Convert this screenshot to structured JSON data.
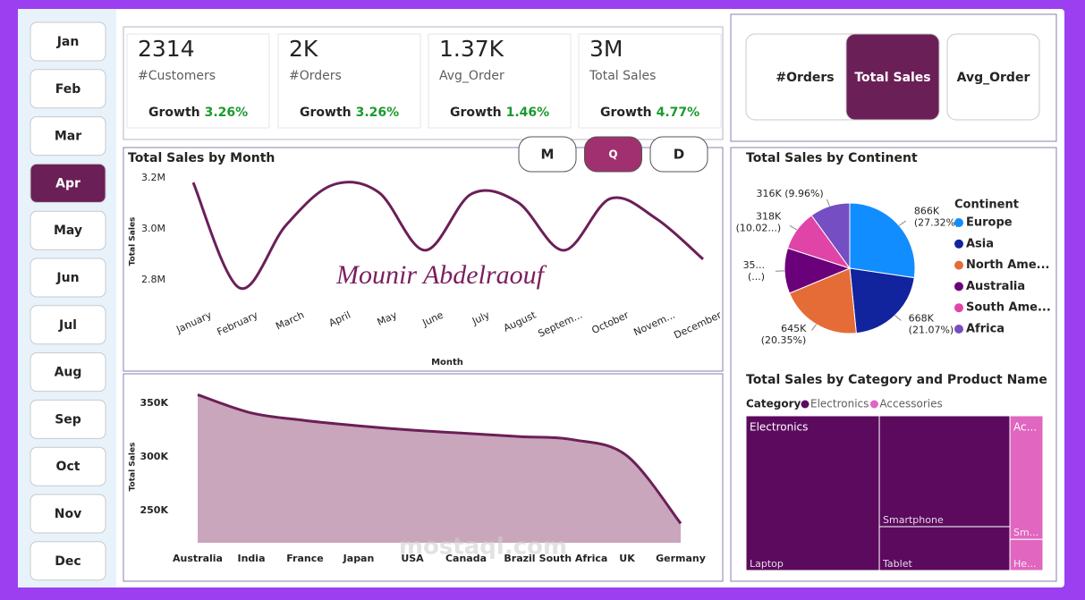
{
  "sidebar": {
    "months": [
      "Jan",
      "Feb",
      "Mar",
      "Apr",
      "May",
      "Jun",
      "Jul",
      "Aug",
      "Sep",
      "Oct",
      "Nov",
      "Dec"
    ],
    "selected": "Apr"
  },
  "kpis": [
    {
      "value": "2314",
      "label": "#Customers",
      "growth_label": "Growth",
      "growth": "3.26%",
      "icon_color": "#c9eed9"
    },
    {
      "value": "2K",
      "label": "#Orders",
      "growth_label": "Growth",
      "growth": "3.26%",
      "icon_color": "#fde9b5"
    },
    {
      "value": "1.37K",
      "label": "Avg_Order",
      "growth_label": "Growth",
      "growth": "1.46%",
      "icon_color": "#ffffff"
    },
    {
      "value": "3M",
      "label": "Total Sales",
      "growth_label": "Growth",
      "growth": "4.77%",
      "icon_color": "#d5dcfb"
    }
  ],
  "metric_toggle": {
    "options": [
      "#Orders",
      "Total Sales",
      "Avg_Order"
    ],
    "selected": "Total Sales"
  },
  "period_toggle": {
    "options": [
      "M",
      "Q",
      "D"
    ],
    "selected": "Q"
  },
  "signature": "Mounir Abdelraouf",
  "watermark": "mostaql.com",
  "chart_data": [
    {
      "type": "line",
      "title": "Total Sales by Month",
      "x_label": "Month",
      "y_label": "Total Sales",
      "categories": [
        "January",
        "February",
        "March",
        "April",
        "May",
        "June",
        "July",
        "August",
        "Septem...",
        "October",
        "Novem...",
        "December"
      ],
      "values": [
        3182000,
        2768000,
        3014000,
        3172000,
        3144000,
        2916000,
        3137000,
        3105000,
        2916000,
        3119000,
        3039000,
        2881000
      ],
      "color": "#6b1f57",
      "ylim": [
        2740000,
        3230000
      ],
      "yticks": [
        {
          "value": 2800000,
          "label": "2.8M"
        },
        {
          "value": 3000000,
          "label": "3.0M"
        },
        {
          "value": 3200000,
          "label": "3.2M"
        }
      ],
      "grid": false
    },
    {
      "type": "area",
      "y_label": "Total Sales",
      "categories": [
        "Australia",
        "India",
        "France",
        "Japan",
        "USA",
        "Canada",
        "Brazil",
        "South Africa",
        "UK",
        "Germany"
      ],
      "values": [
        358000,
        341000,
        334000,
        329000,
        325000,
        322000,
        319000,
        316000,
        301000,
        238000
      ],
      "color": "#6b1f57",
      "fill": "#c9a6bb",
      "ylim": [
        220000,
        365000
      ],
      "yticks": [
        {
          "value": 250000,
          "label": "250K"
        },
        {
          "value": 300000,
          "label": "300K"
        },
        {
          "value": 350000,
          "label": "350K"
        }
      ],
      "grid": false
    },
    {
      "type": "pie",
      "title": "Total Sales by Continent",
      "legend_title": "Continent",
      "categories": [
        "Europe",
        "Asia",
        "North Ame...",
        "Australia",
        "South Ame...",
        "Africa"
      ],
      "values": [
        866000,
        668000,
        645000,
        357000,
        318000,
        316000
      ],
      "value_labels": [
        [
          "866K",
          "(27.32%)"
        ],
        [
          "668K",
          "(21.07%)"
        ],
        [
          "645K",
          "(20.35%)"
        ],
        [
          "35...",
          "(...)"
        ],
        [
          "318K",
          "(10.02...)"
        ],
        [
          "316K (9.96%)"
        ]
      ],
      "colors": [
        "#118dff",
        "#12239e",
        "#e66c37",
        "#6b007b",
        "#e044a7",
        "#744ec2"
      ]
    },
    {
      "type": "treemap",
      "title": "Total Sales by Category and Product Name",
      "legend_title": "Category",
      "groups": [
        {
          "name": "Electronics",
          "cell_label": "Electronics",
          "color": "#5b0a5e",
          "children": [
            {
              "name": "Laptop",
              "value": 1423000
            },
            {
              "name": "Smartphone",
              "value": 999000
            },
            {
              "name": "Tablet",
              "value": 395000
            }
          ]
        },
        {
          "name": "Accessories",
          "cell_label": "Ac...",
          "color": "#e066c0",
          "children": [
            {
              "name": "Sm...",
              "value": 282000
            },
            {
              "name": "He...",
              "value": 71000
            }
          ]
        }
      ]
    }
  ]
}
